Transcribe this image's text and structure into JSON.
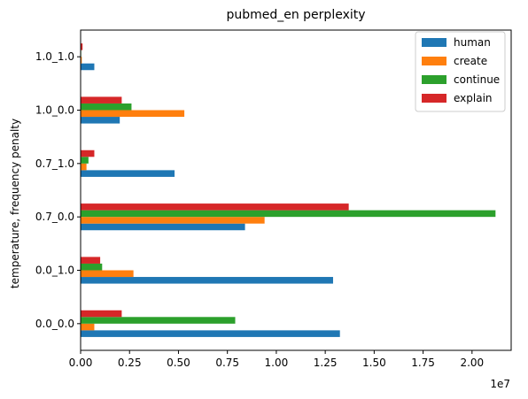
{
  "chart_data": {
    "type": "bar",
    "orientation": "horizontal",
    "title": "pubmed_en perplexity",
    "xlabel": "",
    "ylabel": "temperature, frequency penalty",
    "x_scale_label": "1e7",
    "xlim": [
      0,
      22000000
    ],
    "xticks": [
      0,
      2500000,
      5000000,
      7500000,
      10000000,
      12500000,
      15000000,
      17500000,
      20000000
    ],
    "xtick_labels": [
      "0.00",
      "0.25",
      "0.50",
      "0.75",
      "1.00",
      "1.25",
      "1.50",
      "1.75",
      "2.00"
    ],
    "categories": [
      "0.0_0.0",
      "0.0_1.0",
      "0.7_0.0",
      "0.7_1.0",
      "1.0_0.0",
      "1.0_1.0"
    ],
    "series": [
      {
        "name": "human",
        "color": "#1f77b4",
        "values": [
          13250000,
          12900000,
          8400000,
          4800000,
          2000000,
          700000
        ]
      },
      {
        "name": "create",
        "color": "#ff7f0e",
        "values": [
          700000,
          2700000,
          9400000,
          300000,
          5300000,
          60000
        ]
      },
      {
        "name": "continue",
        "color": "#2ca02c",
        "values": [
          7900000,
          1100000,
          21200000,
          400000,
          2600000,
          30000
        ]
      },
      {
        "name": "explain",
        "color": "#d62728",
        "values": [
          2100000,
          1000000,
          13700000,
          700000,
          2100000,
          100000
        ]
      }
    ],
    "legend_position": "top-right",
    "grid": false
  }
}
